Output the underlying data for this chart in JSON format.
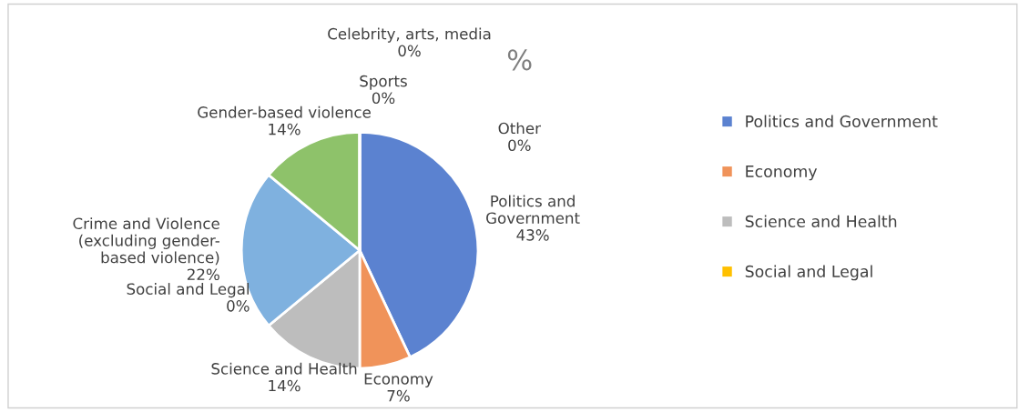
{
  "chart_data": {
    "type": "pie",
    "title": "%",
    "categories": [
      "Politics and Government",
      "Economy",
      "Science and Health",
      "Social and Legal",
      "Crime and Violence (excluding gender-based violence)",
      "Gender-based violence",
      "Sports",
      "Celebrity, arts, media",
      "Other"
    ],
    "values": [
      43,
      7,
      14,
      0,
      22,
      14,
      0,
      0,
      0
    ],
    "value_labels": [
      "43%",
      "7%",
      "14%",
      "0%",
      "22%",
      "14%",
      "0%",
      "0%",
      "0%"
    ],
    "colors": [
      "#5b82d0",
      "#f0935a",
      "#bdbdbd",
      "#ffc000",
      "#7fb1df",
      "#8ec26a",
      "#264478",
      "#9e480e",
      "#636363"
    ],
    "legend": "right"
  }
}
